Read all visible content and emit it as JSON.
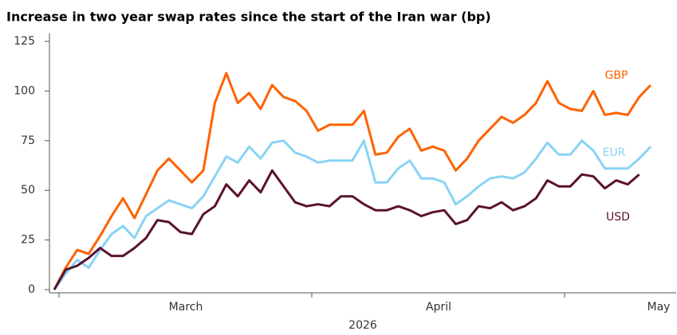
{
  "chart_data": {
    "type": "line",
    "title": "Increase in two year swap rates since the start of the Iran war (bp)",
    "xlabel": "2026",
    "month_labels": [
      "March",
      "April",
      "May"
    ],
    "ylim": [
      0,
      125
    ],
    "yticks": [
      0,
      25,
      50,
      75,
      100,
      125
    ],
    "series": [
      {
        "name": "GBP",
        "color": "#ff6200",
        "values": [
          0,
          11,
          20,
          18,
          27,
          37,
          46,
          36,
          48,
          60,
          66,
          60,
          54,
          60,
          94,
          109,
          94,
          99,
          91,
          103,
          97,
          95,
          90,
          80,
          83,
          83,
          83,
          90,
          68,
          69,
          77,
          81,
          70,
          72,
          70,
          60,
          66,
          75,
          81,
          87,
          84,
          88,
          94,
          105,
          94,
          91,
          90,
          100,
          88,
          89,
          88,
          97,
          103
        ]
      },
      {
        "name": "EUR",
        "color": "#89d3f5",
        "values": [
          0,
          8,
          15,
          11,
          20,
          28,
          32,
          26,
          37,
          41,
          45,
          43,
          41,
          47,
          57,
          67,
          64,
          72,
          66,
          74,
          75,
          69,
          67,
          64,
          65,
          65,
          65,
          75,
          54,
          54,
          61,
          65,
          56,
          56,
          54,
          43,
          47,
          52,
          56,
          57,
          56,
          59,
          66,
          74,
          68,
          68,
          75,
          70,
          61,
          61,
          61,
          66,
          72
        ]
      },
      {
        "name": "USD",
        "color": "#5a1230",
        "values": [
          0,
          10,
          12,
          16,
          21,
          17,
          17,
          21,
          26,
          35,
          34,
          29,
          28,
          38,
          42,
          53,
          47,
          55,
          49,
          60,
          52,
          44,
          42,
          43,
          42,
          47,
          47,
          43,
          40,
          40,
          42,
          40,
          37,
          39,
          40,
          33,
          35,
          42,
          41,
          44,
          40,
          42,
          46,
          55,
          52,
          52,
          58,
          57,
          51,
          55,
          53,
          58,
          null
        ]
      }
    ]
  }
}
